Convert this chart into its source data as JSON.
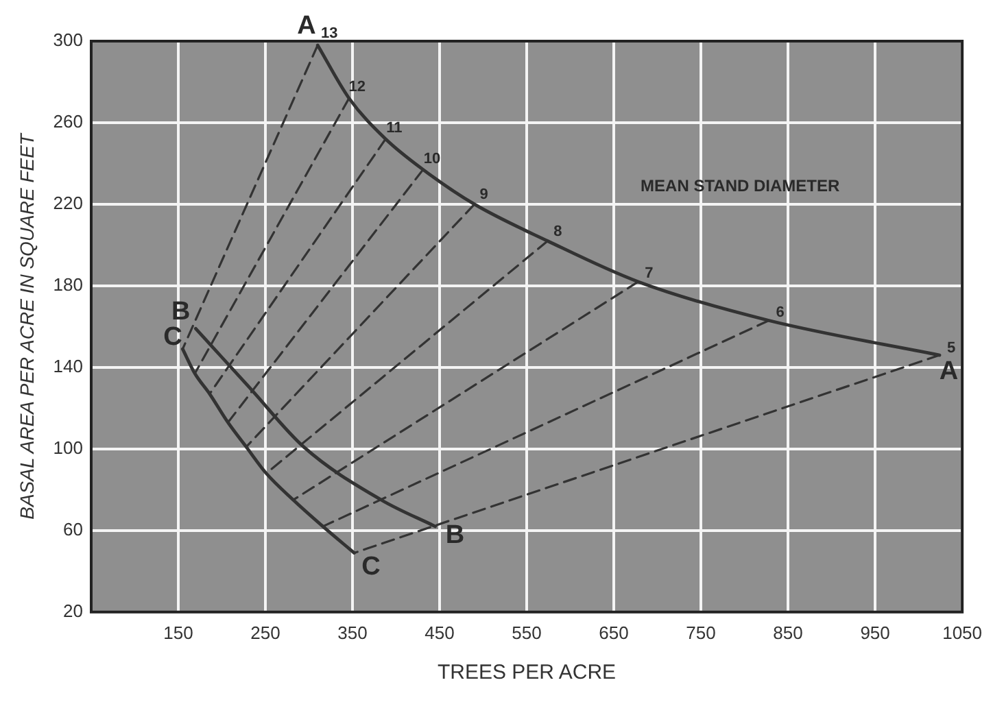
{
  "chart_data": {
    "type": "line",
    "xlabel": "TREES PER ACRE",
    "ylabel": "BASAL AREA PER ACRE IN SQUARE FEET",
    "xlim": [
      50,
      1050
    ],
    "xticks": [
      150,
      250,
      350,
      450,
      550,
      650,
      750,
      850,
      950,
      1050
    ],
    "ylim": [
      20,
      300
    ],
    "yticks": [
      20,
      60,
      100,
      140,
      180,
      220,
      260,
      300
    ],
    "grid": true,
    "legend": false,
    "marker": "none",
    "series": [
      {
        "color": "#333333",
        "line_style": "solid",
        "x": [
          310,
          346,
          388,
          431,
          490,
          574,
          678,
          828,
          1024
        ],
        "values": [
          298,
          272,
          252,
          237,
          220,
          202,
          182,
          163,
          146
        ]
      },
      {
        "color": "#333333",
        "line_style": "solid",
        "x": [
          170,
          232,
          294,
          383,
          445
        ],
        "values": [
          159,
          130,
          101,
          75,
          62
        ]
      },
      {
        "color": "#333333",
        "line_style": "solid",
        "x": [
          155,
          169,
          186,
          207,
          228,
          251,
          282,
          316,
          352
        ],
        "values": [
          149,
          137,
          127,
          113,
          101,
          88,
          75,
          62,
          49
        ]
      },
      {
        "color": "#333333",
        "line_style": "dashed",
        "x": [
          310,
          155
        ],
        "values": [
          298,
          149
        ]
      },
      {
        "color": "#333333",
        "line_style": "dashed",
        "x": [
          346,
          169
        ],
        "values": [
          272,
          137
        ]
      },
      {
        "color": "#333333",
        "line_style": "dashed",
        "x": [
          388,
          186
        ],
        "values": [
          252,
          127
        ]
      },
      {
        "color": "#333333",
        "line_style": "dashed",
        "x": [
          431,
          207
        ],
        "values": [
          237,
          113
        ]
      },
      {
        "color": "#333333",
        "line_style": "dashed",
        "x": [
          490,
          228
        ],
        "values": [
          220,
          101
        ]
      },
      {
        "color": "#333333",
        "line_style": "dashed",
        "x": [
          574,
          251
        ],
        "values": [
          202,
          88
        ]
      },
      {
        "color": "#333333",
        "line_style": "dashed",
        "x": [
          678,
          282
        ],
        "values": [
          182,
          75
        ]
      },
      {
        "color": "#333333",
        "line_style": "dashed",
        "x": [
          828,
          316
        ],
        "values": [
          163,
          62
        ]
      },
      {
        "color": "#333333",
        "line_style": "dashed",
        "x": [
          1024,
          352
        ],
        "values": [
          146,
          49
        ]
      }
    ],
    "annotations": [
      {
        "text": "A",
        "x": 310,
        "y": 298
      },
      {
        "text": "13",
        "x": 310,
        "y": 298
      },
      {
        "text": "12",
        "x": 346,
        "y": 272
      },
      {
        "text": "11",
        "x": 388,
        "y": 252
      },
      {
        "text": "10",
        "x": 431,
        "y": 237
      },
      {
        "text": "9",
        "x": 490,
        "y": 220
      },
      {
        "text": "8",
        "x": 574,
        "y": 202
      },
      {
        "text": "7",
        "x": 678,
        "y": 182
      },
      {
        "text": "6",
        "x": 828,
        "y": 163
      },
      {
        "text": "5",
        "x": 1024,
        "y": 146
      },
      {
        "text": "A",
        "x": 1024,
        "y": 146
      },
      {
        "text": "B",
        "x": 170,
        "y": 159
      },
      {
        "text": "C",
        "x": 155,
        "y": 149
      },
      {
        "text": "B",
        "x": 445,
        "y": 62
      },
      {
        "text": "C",
        "x": 352,
        "y": 49
      },
      "MEAN STAND DIAMETER"
    ]
  }
}
